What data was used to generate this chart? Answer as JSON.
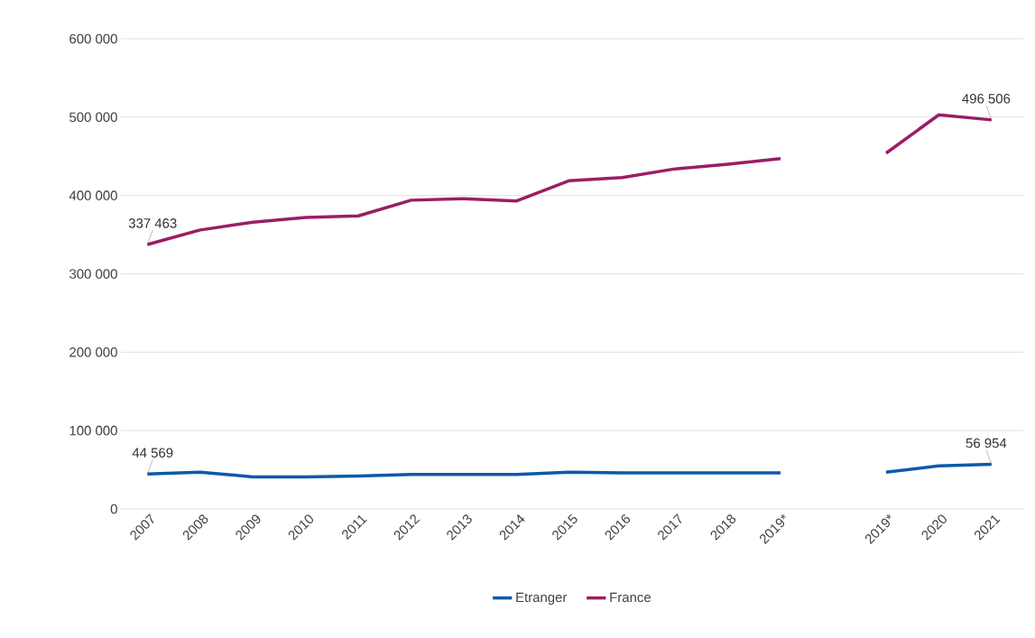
{
  "chart_data": {
    "type": "line",
    "categories": [
      "2007",
      "2008",
      "2009",
      "2010",
      "2011",
      "2012",
      "2013",
      "2014",
      "2015",
      "2016",
      "2017",
      "2018",
      "2019*",
      null,
      "2019*",
      "2020",
      "2021"
    ],
    "series": [
      {
        "name": "Etranger",
        "color": "#0b5aa8",
        "values": [
          44569,
          47000,
          41000,
          41000,
          42000,
          44000,
          44000,
          44000,
          47000,
          46000,
          46000,
          46000,
          46000,
          null,
          47000,
          55000,
          56954
        ],
        "value_labels": [
          "44 569",
          null,
          null,
          null,
          null,
          null,
          null,
          null,
          null,
          null,
          null,
          null,
          null,
          null,
          null,
          null,
          "56 954"
        ]
      },
      {
        "name": "France",
        "color": "#9b1d66",
        "values": [
          337463,
          356000,
          366000,
          372000,
          374000,
          394000,
          396000,
          393000,
          419000,
          423000,
          434000,
          440000,
          447000,
          null,
          454000,
          503000,
          496506
        ],
        "value_labels": [
          "337 463",
          null,
          null,
          null,
          null,
          null,
          null,
          null,
          null,
          null,
          null,
          null,
          null,
          null,
          null,
          null,
          "496 506"
        ]
      }
    ],
    "ylim": [
      0,
      600000
    ],
    "yticks": [
      {
        "value": 0,
        "label": "0"
      },
      {
        "value": 100000,
        "label": "100 000"
      },
      {
        "value": 200000,
        "label": "200 000"
      },
      {
        "value": 300000,
        "label": "300 000"
      },
      {
        "value": 400000,
        "label": "400 000"
      },
      {
        "value": 500000,
        "label": "500 000"
      },
      {
        "value": 600000,
        "label": "600 000"
      }
    ],
    "grid": "y",
    "legend": "bottom",
    "line_style": "solid",
    "marker": "none"
  }
}
